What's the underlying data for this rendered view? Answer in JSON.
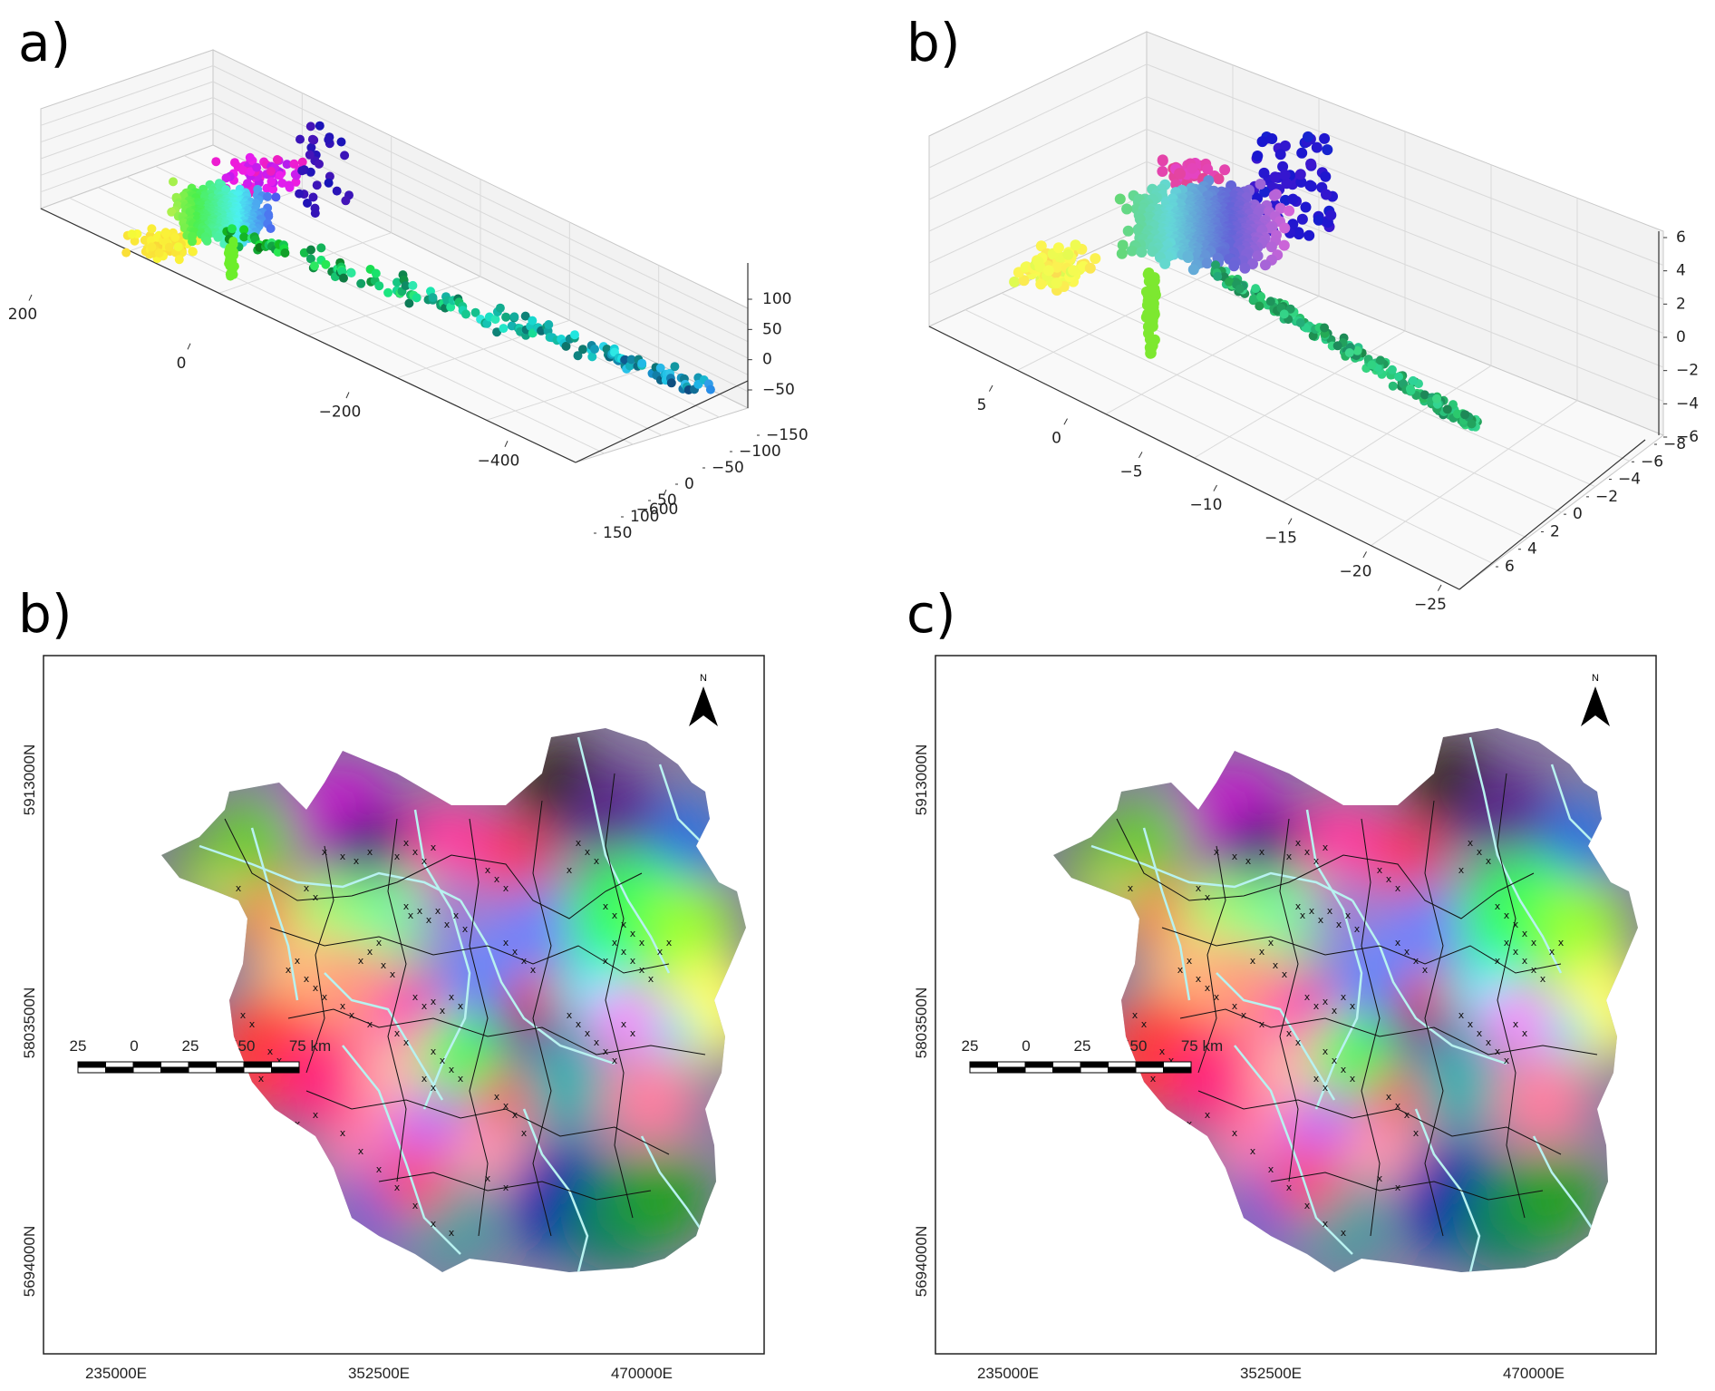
{
  "panels": {
    "a": {
      "label": "a)"
    },
    "b_top": {
      "label": "b)"
    },
    "b_bottom": {
      "label": "b)"
    },
    "c": {
      "label": "c)"
    }
  },
  "chart_data": [
    {
      "panel": "a)",
      "type": "scatter",
      "projection": "3d",
      "grid": true,
      "x_ticks": [
        "200",
        "0",
        "−200",
        "−400",
        "−600"
      ],
      "y_ticks": [
        "−150",
        "−100",
        "−50",
        "0",
        "50",
        "100",
        "150"
      ],
      "z_ticks": [
        "100",
        "50",
        "0",
        "−50"
      ],
      "xlim": [
        200,
        -700
      ],
      "ylim": [
        -150,
        150
      ],
      "zlim": [
        -60,
        130
      ]
    },
    {
      "panel": "b)",
      "type": "scatter",
      "projection": "3d",
      "grid": true,
      "x_ticks": [
        "5",
        "0",
        "−5",
        "−10",
        "−15",
        "−20",
        "−25"
      ],
      "y_ticks": [
        "−8",
        "−6",
        "−4",
        "−2",
        "0",
        "2",
        "4",
        "6"
      ],
      "z_ticks": [
        "6",
        "4",
        "2",
        "0",
        "−2",
        "−4",
        "−6"
      ],
      "xlim": [
        8,
        -25
      ],
      "ylim": [
        -8,
        6
      ],
      "zlim": [
        -6,
        6
      ]
    },
    {
      "panel": "b)",
      "type": "heatmap",
      "map": true,
      "x_ticks": [
        "235000E",
        "352500E",
        "470000E"
      ],
      "y_ticks": [
        "5913000N",
        "5803500N",
        "5694000N"
      ],
      "north_label": "N",
      "scale_bar": {
        "labels": [
          "25",
          "0",
          "25",
          "50",
          "75 km"
        ]
      }
    },
    {
      "panel": "c)",
      "type": "heatmap",
      "map": true,
      "x_ticks": [
        "235000E",
        "352500E",
        "470000E"
      ],
      "y_ticks": [
        "5913000N",
        "5803500N",
        "5694000N"
      ],
      "north_label": "N",
      "scale_bar": {
        "labels": [
          "25",
          "0",
          "25",
          "50",
          "75 km"
        ]
      }
    }
  ],
  "colors": {
    "grid": "#d9d9d9",
    "pane": "#f2f2f2",
    "river": "#b8f2f0",
    "border": "#111111"
  }
}
